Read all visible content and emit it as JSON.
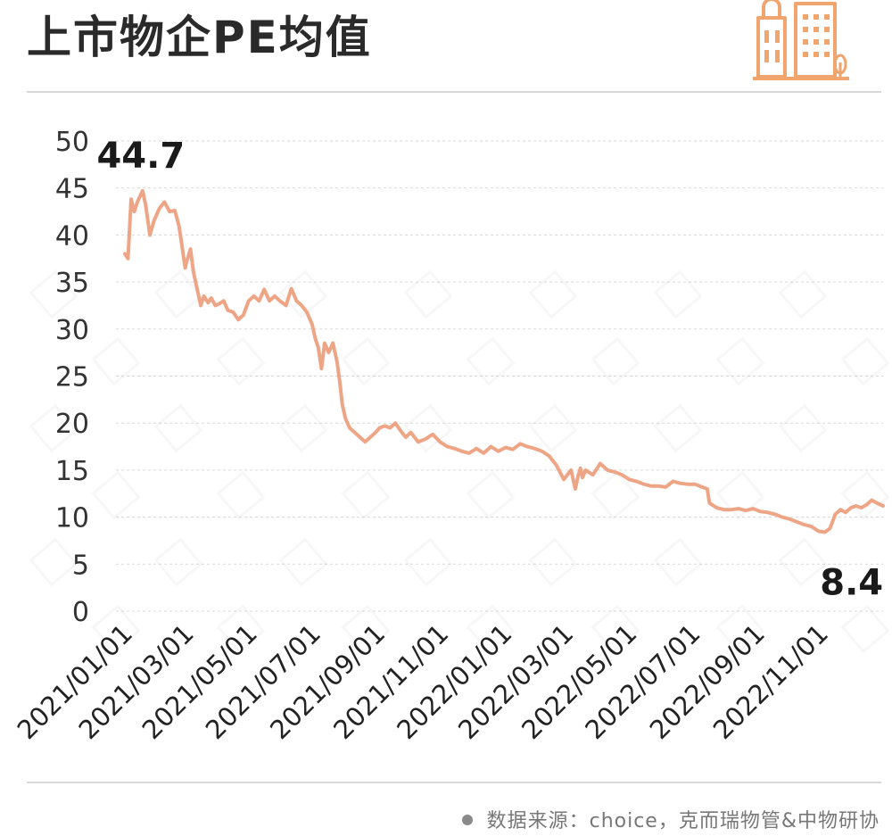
{
  "title": "上市物企PE均值",
  "source_text": "数据来源：choice，克而瑞物管&中物研协",
  "colors": {
    "line": "#eda586",
    "accent": "#f0a46e",
    "grid": "#d9d9d9",
    "text": "#222222"
  },
  "icons": {
    "logo": "building-logo-icon",
    "bullet": "bullet-dot-icon"
  },
  "chart_data": {
    "type": "line",
    "title": "上市物企PE均值",
    "ylim": [
      0,
      50
    ],
    "yticks": [
      0,
      5,
      10,
      15,
      20,
      25,
      30,
      35,
      40,
      45,
      50
    ],
    "xticks": [
      "2021/01/01",
      "2021/03/01",
      "2021/05/01",
      "2021/07/01",
      "2021/09/01",
      "2021/11/01",
      "2022/01/01",
      "2022/03/01",
      "2022/05/01",
      "2022/07/01",
      "2022/09/01",
      "2022/11/01"
    ],
    "xrange": [
      "2021/01/01",
      "2022/12/31"
    ],
    "grid": true,
    "annotations": [
      {
        "date": "2021/01/18",
        "value": 44.7,
        "label": "44.7"
      },
      {
        "date": "2022/11/05",
        "value": 8.4,
        "label": "8.4"
      }
    ],
    "series": [
      {
        "dates": [
          "2021/01/01",
          "2021/01/04",
          "2021/01/07",
          "2021/01/10",
          "2021/01/13",
          "2021/01/18",
          "2021/01/21",
          "2021/01/25",
          "2021/01/29",
          "2021/02/03",
          "2021/02/08",
          "2021/02/13",
          "2021/02/18",
          "2021/02/22",
          "2021/02/24",
          "2021/02/26",
          "2021/02/28",
          "2021/03/01",
          "2021/03/05",
          "2021/03/08",
          "2021/03/12",
          "2021/03/15",
          "2021/03/18",
          "2021/03/22",
          "2021/03/25",
          "2021/03/29",
          "2021/04/02",
          "2021/04/06",
          "2021/04/10",
          "2021/04/15",
          "2021/04/20",
          "2021/04/25",
          "2021/04/30",
          "2021/05/05",
          "2021/05/10",
          "2021/05/15",
          "2021/05/20",
          "2021/05/25",
          "2021/05/30",
          "2021/06/05",
          "2021/06/10",
          "2021/06/15",
          "2021/06/20",
          "2021/06/25",
          "2021/06/30",
          "2021/07/03",
          "2021/07/06",
          "2021/07/09",
          "2021/07/12",
          "2021/07/16",
          "2021/07/20",
          "2021/07/24",
          "2021/07/27",
          "2021/07/29",
          "2021/08/01",
          "2021/08/05",
          "2021/08/10",
          "2021/08/15",
          "2021/08/20",
          "2021/08/25",
          "2021/08/30",
          "2021/09/03",
          "2021/09/08",
          "2021/09/13",
          "2021/09/18",
          "2021/09/23",
          "2021/09/28",
          "2021/10/03",
          "2021/10/10",
          "2021/10/17",
          "2021/10/24",
          "2021/10/31",
          "2021/11/07",
          "2021/11/14",
          "2021/11/21",
          "2021/11/28",
          "2021/12/05",
          "2021/12/12",
          "2021/12/19",
          "2021/12/26",
          "2022/01/02",
          "2022/01/09",
          "2022/01/16",
          "2022/01/23",
          "2022/01/30",
          "2022/02/06",
          "2022/02/13",
          "2022/02/20",
          "2022/02/27",
          "2022/03/06",
          "2022/03/10",
          "2022/03/13",
          "2022/03/15",
          "2022/03/17",
          "2022/03/20",
          "2022/03/27",
          "2022/04/03",
          "2022/04/10",
          "2022/04/17",
          "2022/04/24",
          "2022/05/01",
          "2022/05/08",
          "2022/05/15",
          "2022/05/22",
          "2022/05/29",
          "2022/06/05",
          "2022/06/12",
          "2022/06/19",
          "2022/06/26",
          "2022/07/03",
          "2022/07/10",
          "2022/07/15",
          "2022/07/17",
          "2022/07/24",
          "2022/07/31",
          "2022/08/07",
          "2022/08/14",
          "2022/08/21",
          "2022/08/28",
          "2022/09/04",
          "2022/09/11",
          "2022/09/18",
          "2022/09/25",
          "2022/10/02",
          "2022/10/09",
          "2022/10/16",
          "2022/10/23",
          "2022/10/30",
          "2022/11/05",
          "2022/11/10",
          "2022/11/15",
          "2022/11/20",
          "2022/11/25",
          "2022/11/30",
          "2022/12/05",
          "2022/12/10",
          "2022/12/15",
          "2022/12/20",
          "2022/12/25",
          "2022/12/31"
        ],
        "values": [
          38.0,
          37.5,
          43.8,
          42.5,
          43.5,
          44.7,
          43.2,
          40.0,
          41.5,
          42.8,
          43.5,
          42.5,
          42.6,
          41.0,
          39.5,
          38.0,
          36.5,
          37.0,
          38.5,
          36.0,
          34.0,
          32.5,
          33.5,
          32.8,
          33.3,
          32.5,
          32.7,
          33.0,
          32.0,
          31.8,
          31.0,
          31.5,
          33.0,
          33.5,
          33.0,
          34.2,
          33.0,
          33.5,
          33.0,
          32.5,
          34.3,
          33.0,
          32.5,
          31.8,
          30.5,
          29.0,
          28.0,
          25.8,
          28.5,
          27.5,
          28.5,
          26.5,
          24.0,
          22.0,
          20.5,
          19.5,
          19.0,
          18.5,
          18.0,
          18.5,
          19.0,
          19.5,
          19.7,
          19.5,
          20.0,
          19.2,
          18.5,
          19.0,
          18.0,
          18.3,
          18.8,
          18.0,
          17.5,
          17.3,
          17.0,
          16.8,
          17.3,
          16.8,
          17.5,
          17.0,
          17.4,
          17.2,
          17.8,
          17.5,
          17.3,
          17.0,
          16.5,
          15.5,
          14.0,
          15.0,
          13.0,
          14.5,
          15.2,
          14.2,
          15.0,
          14.5,
          15.7,
          15.0,
          14.8,
          14.5,
          14.0,
          13.8,
          13.5,
          13.3,
          13.3,
          13.2,
          13.8,
          13.6,
          13.5,
          13.5,
          13.2,
          13.0,
          11.5,
          11.0,
          10.8,
          10.8,
          10.9,
          10.7,
          10.9,
          10.6,
          10.5,
          10.3,
          10.0,
          9.8,
          9.5,
          9.2,
          9.0,
          8.5,
          8.4,
          8.8,
          10.3,
          10.8,
          10.5,
          11.0,
          11.2,
          11.0,
          11.3,
          11.8,
          11.5,
          11.2
        ]
      }
    ]
  }
}
